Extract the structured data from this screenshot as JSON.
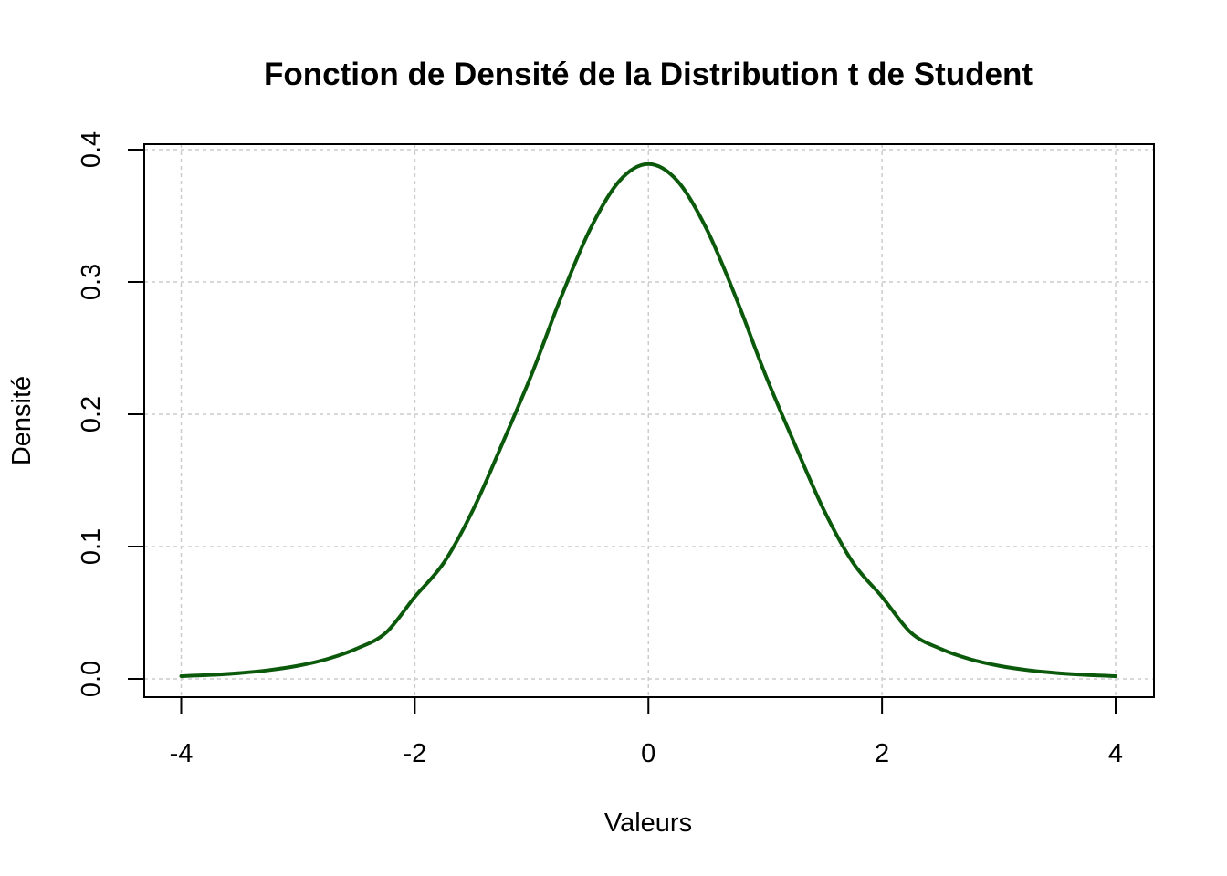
{
  "chart_data": {
    "type": "line",
    "title": "Fonction de Densité de la Distribution t de Student",
    "xlabel": "Valeurs",
    "ylabel": "Densité",
    "xlim": [
      -4,
      4
    ],
    "ylim": [
      0,
      0.4
    ],
    "x_ticks": [
      -4,
      -2,
      0,
      2,
      4
    ],
    "x_tick_labels": [
      "-4",
      "-2",
      "0",
      "2",
      "4"
    ],
    "y_ticks": [
      0,
      0.1,
      0.2,
      0.3,
      0.4
    ],
    "y_tick_labels": [
      "0.0",
      "0.1",
      "0.2",
      "0.3",
      "0.4"
    ],
    "grid": true,
    "grid_color": "#cccccc",
    "line_color": "#0b5a0b",
    "series": [
      {
        "x": [
          -4.0,
          -3.75,
          -3.5,
          -3.25,
          -3.0,
          -2.75,
          -2.5,
          -2.25,
          -2.0,
          -1.75,
          -1.5,
          -1.25,
          -1.0,
          -0.75,
          -0.5,
          -0.25,
          0.0,
          0.25,
          0.5,
          0.75,
          1.0,
          1.25,
          1.5,
          1.75,
          2.0,
          2.25,
          2.5,
          2.75,
          3.0,
          3.25,
          3.5,
          3.75,
          4.0
        ],
        "y": [
          0.0021,
          0.003,
          0.0044,
          0.0066,
          0.0099,
          0.015,
          0.0228,
          0.0347,
          0.062,
          0.088,
          0.128,
          0.178,
          0.2302,
          0.288,
          0.3397,
          0.3762,
          0.3891,
          0.3762,
          0.3397,
          0.288,
          0.2302,
          0.178,
          0.128,
          0.088,
          0.062,
          0.0347,
          0.0228,
          0.015,
          0.0099,
          0.0066,
          0.0044,
          0.003,
          0.0021
        ]
      }
    ]
  }
}
